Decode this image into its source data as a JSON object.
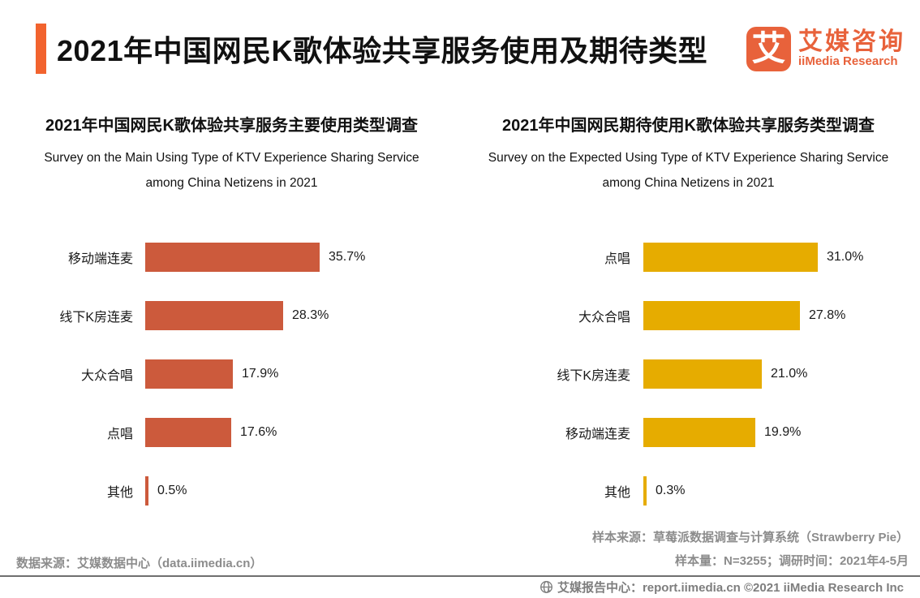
{
  "header": {
    "title": "2021年中国网民K歌体验共享服务使用及期待类型",
    "accent_color": "#F2632E",
    "logo": {
      "glyph": "艾",
      "name_cn": "艾媒咨询",
      "name_en": "iiMedia Research",
      "color": "#E8623B"
    }
  },
  "chart_data": [
    {
      "type": "bar",
      "orientation": "horizontal",
      "title": "2021年中国网民K歌体验共享服务主要使用类型调查",
      "subtitle_line1": "Survey on the Main Using Type of KTV Experience Sharing Service",
      "subtitle_line2": "among China Netizens in 2021",
      "categories": [
        "移动端连麦",
        "线下K房连麦",
        "大众合唱",
        "点唱",
        "其他"
      ],
      "values": [
        35.7,
        28.3,
        17.9,
        17.6,
        0.5
      ],
      "value_labels": [
        "35.7%",
        "28.3%",
        "17.9%",
        "17.6%",
        "0.5%"
      ],
      "unit": "%",
      "bar_color": "#CC5A3C",
      "xlim": [
        0,
        35.7
      ],
      "grid": false,
      "axes_shown": false,
      "legend": "none",
      "data_labels": "outside-end"
    },
    {
      "type": "bar",
      "orientation": "horizontal",
      "title": "2021年中国网民期待使用K歌体验共享服务类型调查",
      "subtitle_line1": "Survey on the Expected Using Type of KTV Experience Sharing Service",
      "subtitle_line2": "among China Netizens in 2021",
      "categories": [
        "点唱",
        "大众合唱",
        "线下K房连麦",
        "移动端连麦",
        "其他"
      ],
      "values": [
        31.0,
        27.8,
        21.0,
        19.9,
        0.3
      ],
      "value_labels": [
        "31.0%",
        "27.8%",
        "21.0%",
        "19.9%",
        "0.3%"
      ],
      "unit": "%",
      "bar_color": "#E6AC00",
      "xlim": [
        0,
        31.0
      ],
      "grid": false,
      "axes_shown": false,
      "legend": "none",
      "data_labels": "outside-end"
    }
  ],
  "footer": {
    "data_source": "数据来源：艾媒数据中心（data.iimedia.cn）",
    "sample_source": "样本来源：草莓派数据调查与计算系统（Strawberry Pie）",
    "sample_size": "样本量：N=3255；调研时间：2021年4-5月",
    "report_center": "艾媒报告中心：report.iimedia.cn ©2021  iiMedia Research Inc"
  }
}
